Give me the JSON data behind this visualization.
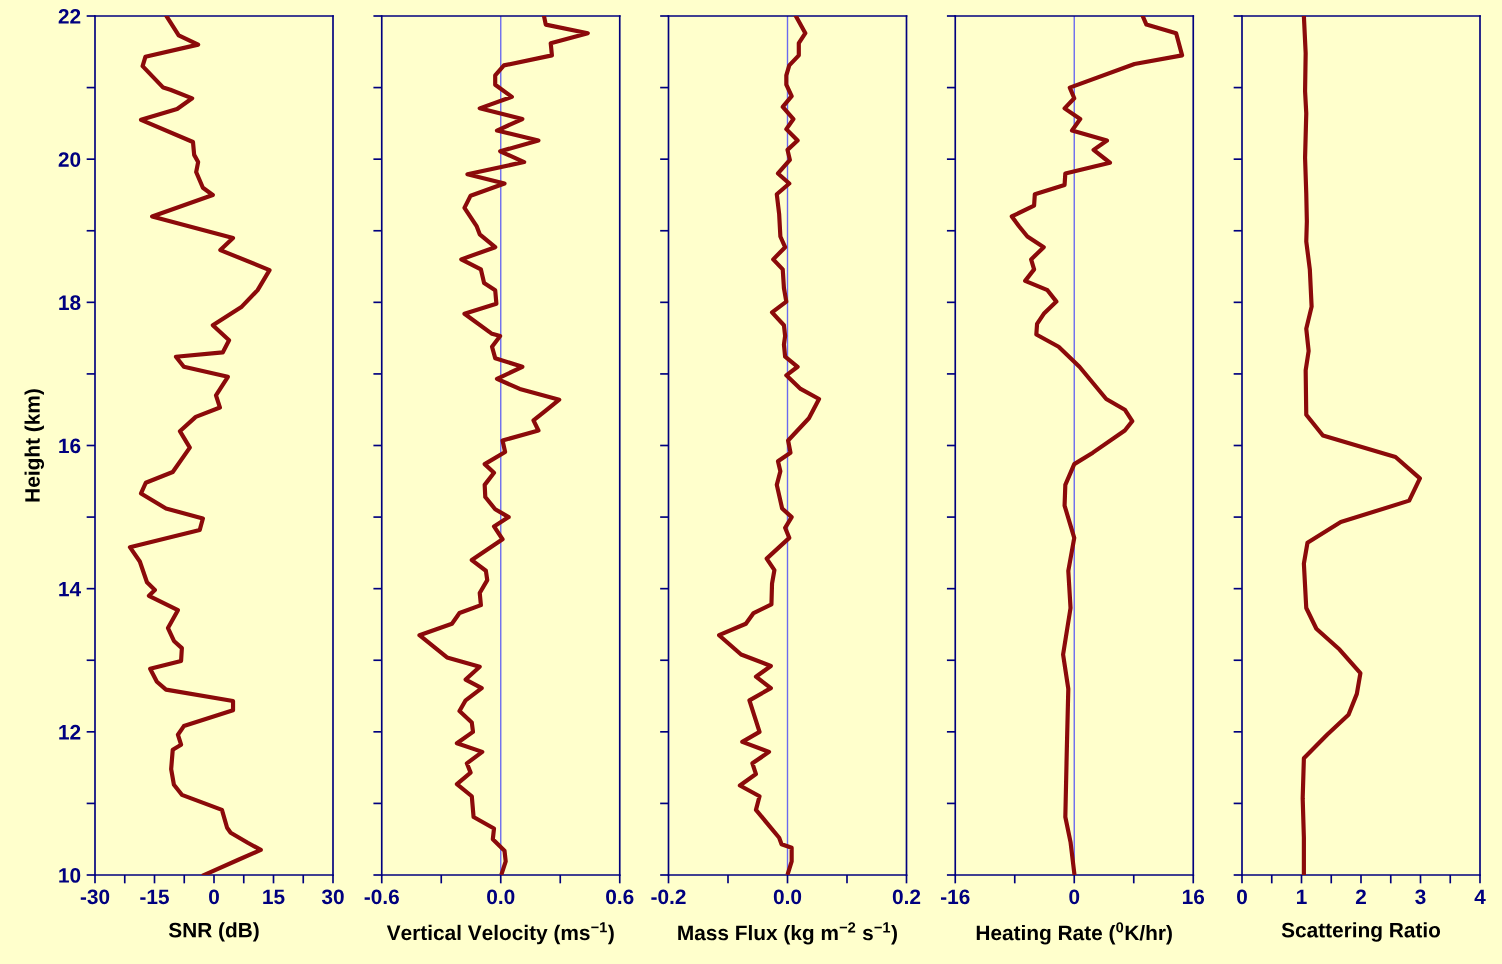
{
  "chart_data": [
    {
      "type": "line",
      "xlabel": "SNR (dB)",
      "ylabel": "Height (km)",
      "series": [
        {
          "color": "#8b0a0a",
          "x": [
            -12,
            -8.9,
            -4,
            -17.3,
            -18,
            -12.8,
            -11,
            -5.5,
            -9.3,
            -18.4,
            -5.3,
            -5,
            -4,
            -4.5,
            -2.8,
            -0.3,
            -15.6,
            4.8,
            1.6,
            14,
            11,
            7,
            -0.3,
            3.8,
            2.2,
            -9.6,
            -7.6,
            3.5,
            0.5,
            1.5,
            -4.6,
            -8.6,
            -6.1,
            -10.4,
            -17.2,
            -18.4,
            -12.1,
            -2.8,
            -3.6,
            -21.2,
            -18.7,
            -16.9,
            -14.9,
            -16.4,
            -9.1,
            -11.6,
            -10.1,
            -8.1,
            -8.3,
            -16.1,
            -14.4,
            -12.1,
            4.8,
            4.8,
            -7.6,
            -9.1,
            -8.3,
            -10.4,
            -10.8,
            -10.1,
            -8.1,
            2,
            3.3,
            4.2,
            8.5,
            11.8,
            6,
            -2.5
          ],
          "values": [
            22,
            21.73,
            21.6,
            21.43,
            21.3,
            21.0,
            20.97,
            20.85,
            20.7,
            20.55,
            20.24,
            20.06,
            19.96,
            19.82,
            19.6,
            19.5,
            19.2,
            18.9,
            18.73,
            18.45,
            18.17,
            17.94,
            17.68,
            17.47,
            17.3,
            17.24,
            17.1,
            16.96,
            16.7,
            16.53,
            16.4,
            16.2,
            15.97,
            15.63,
            15.48,
            15.33,
            15.12,
            14.98,
            14.82,
            14.58,
            14.38,
            14.09,
            13.98,
            13.9,
            13.7,
            13.45,
            13.27,
            13.17,
            12.99,
            12.88,
            12.7,
            12.59,
            12.43,
            12.3,
            12.08,
            11.96,
            11.82,
            11.75,
            11.48,
            11.26,
            11.12,
            10.91,
            10.66,
            10.59,
            10.45,
            10.35,
            10.21,
            10
          ]
        }
      ],
      "xlim": [
        -30,
        30
      ],
      "xticks": [
        -30,
        {
          "value": -22.5,
          "label": null
        },
        -15,
        {
          "value": -7.5,
          "label": null
        },
        0,
        {
          "value": 7.5,
          "label": null
        },
        15,
        {
          "value": 22.5,
          "label": null
        },
        30
      ],
      "ylim": [
        10,
        22
      ],
      "yticks": [
        10,
        {
          "value": 11,
          "label": null
        },
        12,
        {
          "value": 13,
          "label": null
        },
        14,
        {
          "value": 15,
          "label": null
        },
        16,
        {
          "value": 17,
          "label": null
        },
        18,
        {
          "value": 19,
          "label": null
        },
        20,
        {
          "value": 21,
          "label": null
        },
        22
      ]
    },
    {
      "type": "line",
      "xlabel": "Vertical Velocity (ms$^{−1}$)",
      "tick_labels": "x",
      "series": [
        {
          "color": "#8b0a0a",
          "x": [
            0.218,
            0.227,
            0.439,
            0.252,
            0.258,
            0.016,
            -0.028,
            -0.028,
            0.056,
            -0.106,
            0.109,
            -0.019,
            0.19,
            -0.003,
            0.118,
            -0.168,
            0.019,
            -0.152,
            -0.183,
            -0.121,
            -0.106,
            -0.028,
            -0.199,
            -0.1,
            -0.084,
            -0.028,
            -0.022,
            -0.183,
            -0.044,
            -0.003,
            -0.044,
            -0.028,
            0.109,
            -0.019,
            0.096,
            0.295,
            0.233,
            0.165,
            0.19,
            0.009,
            0.022,
            -0.081,
            -0.034,
            -0.081,
            -0.078,
            -0.028,
            0.04,
            -0.034,
            0.009,
            -0.146,
            -0.075,
            -0.068,
            -0.106,
            -0.1,
            -0.208,
            -0.246,
            -0.41,
            -0.271,
            -0.106,
            -0.177,
            -0.096,
            -0.177,
            -0.208,
            -0.146,
            -0.14,
            -0.221,
            -0.093,
            -0.171,
            -0.152,
            -0.221,
            -0.146,
            -0.137,
            -0.034,
            -0.04,
            0.019,
            0.025,
            0.006
          ],
          "values": [
            22,
            21.88,
            21.76,
            21.62,
            21.45,
            21.31,
            21.17,
            21.04,
            20.87,
            20.71,
            20.56,
            20.4,
            20.26,
            20.11,
            19.96,
            19.79,
            19.66,
            19.49,
            19.32,
            19.06,
            18.95,
            18.77,
            18.6,
            18.46,
            18.27,
            18.17,
            17.98,
            17.84,
            17.56,
            17.53,
            17.38,
            17.22,
            17.1,
            16.93,
            16.79,
            16.64,
            16.5,
            16.35,
            16.21,
            16.07,
            15.91,
            15.74,
            15.62,
            15.45,
            15.28,
            15.11,
            15.0,
            14.87,
            14.69,
            14.4,
            14.25,
            14.12,
            13.94,
            13.77,
            13.66,
            13.51,
            13.35,
            13.04,
            12.91,
            12.73,
            12.61,
            12.44,
            12.29,
            12.13,
            12.0,
            11.84,
            11.72,
            11.56,
            11.43,
            11.27,
            11.1,
            10.81,
            10.65,
            10.5,
            10.34,
            10.19,
            10.03
          ]
        }
      ],
      "xlim": [
        -0.6,
        0.6
      ],
      "xticks": [
        {
          "value": -0.6,
          "label": "-0.6"
        },
        {
          "value": -0.3,
          "label": null
        },
        {
          "value": 0,
          "label": "0.0"
        },
        {
          "value": 0.3,
          "label": null
        },
        {
          "value": 0.6,
          "label": "0.6"
        }
      ],
      "ylim": [
        10,
        22
      ],
      "yticks": [
        10,
        11,
        12,
        13,
        14,
        15,
        16,
        17,
        18,
        19,
        20,
        21,
        22
      ],
      "ref_lines": [
        {
          "axis": "x",
          "value": 0,
          "color": "#6a6af0"
        }
      ]
    },
    {
      "type": "line",
      "xlabel": "Mass Flux (kg m$^{−2}$ s$^{−1}$)",
      "tick_labels": "x",
      "series": [
        {
          "color": "#8b0a0a",
          "x": [
            0.014,
            0.03,
            0.019,
            0.019,
            0.003,
            -0.002,
            -0.002,
            0.007,
            -0.008,
            0.01,
            -0.002,
            0.017,
            0,
            0.004,
            -0.016,
            0.003,
            -0.018,
            -0.014,
            -0.012,
            -0.004,
            -0.024,
            -0.008,
            -0.006,
            -0.002,
            -0.026,
            -0.006,
            -0.004,
            -0.006,
            -0.004,
            0.017,
            -0.002,
            0.022,
            0.053,
            0.036,
            0.001,
            0.005,
            -0.016,
            -0.012,
            -0.018,
            -0.009,
            0.007,
            -0.004,
            0.003,
            -0.035,
            -0.022,
            -0.026,
            -0.027,
            -0.057,
            -0.07,
            -0.115,
            -0.078,
            -0.028,
            -0.053,
            -0.028,
            -0.064,
            -0.047,
            -0.076,
            -0.031,
            -0.059,
            -0.053,
            -0.08,
            -0.047,
            -0.053,
            -0.014,
            -0.01,
            0.007,
            0.007,
            0.001
          ],
          "values": [
            22,
            21.76,
            21.62,
            21.45,
            21.31,
            21.17,
            21.04,
            20.88,
            20.73,
            20.56,
            20.42,
            20.26,
            20.13,
            19.99,
            19.8,
            19.66,
            19.51,
            19.23,
            18.92,
            18.77,
            18.6,
            18.46,
            18.2,
            18.01,
            17.86,
            17.68,
            17.53,
            17.41,
            17.24,
            17.1,
            16.98,
            16.79,
            16.65,
            16.38,
            16.07,
            15.9,
            15.78,
            15.64,
            15.45,
            15.12,
            15.0,
            14.85,
            14.71,
            14.42,
            14.26,
            14.07,
            13.78,
            13.66,
            13.51,
            13.35,
            13.08,
            12.92,
            12.77,
            12.61,
            12.44,
            12.0,
            11.86,
            11.72,
            11.56,
            11.41,
            11.25,
            11.1,
            10.91,
            10.52,
            10.43,
            10.38,
            10.19,
            10.03
          ]
        }
      ],
      "xlim": [
        -0.2,
        0.2
      ],
      "xticks": [
        {
          "value": -0.2,
          "label": "-0.2"
        },
        {
          "value": -0.1,
          "label": null
        },
        {
          "value": 0,
          "label": "0.0"
        },
        {
          "value": 0.1,
          "label": null
        },
        {
          "value": 0.2,
          "label": "0.2"
        }
      ],
      "ylim": [
        10,
        22
      ],
      "yticks": [
        10,
        11,
        12,
        13,
        14,
        15,
        16,
        17,
        18,
        19,
        20,
        21,
        22
      ],
      "ref_lines": [
        {
          "axis": "x",
          "value": 0,
          "color": "#6a6af0"
        }
      ]
    },
    {
      "type": "line",
      "xlabel": "Heating Rate ($^{0}$K/hr)",
      "tick_labels": "x",
      "series": [
        {
          "color": "#8b0a0a",
          "x": [
            9.2,
            9.7,
            13.7,
            14.5,
            8.1,
            -0.6,
            0,
            -1.3,
            0.8,
            -0.3,
            4.4,
            2.6,
            4.8,
            -1.2,
            -1.3,
            -5.3,
            -5.4,
            -8.4,
            -7.4,
            -6.3,
            -4.1,
            -5.8,
            -5.4,
            -6.6,
            -3.6,
            -2.4,
            -4.1,
            -5.0,
            -5.1,
            -2.1,
            0.7,
            4.3,
            6.8,
            7.8,
            6.8,
            2.5,
            0,
            -1.2,
            -1.3,
            0,
            -0.8,
            -0.5,
            -1.5,
            -0.8,
            -1.0,
            -1.2,
            -0.5,
            0
          ],
          "values": [
            22,
            21.88,
            21.76,
            21.45,
            21.33,
            21.0,
            20.85,
            20.71,
            20.56,
            20.4,
            20.26,
            20.13,
            19.95,
            19.8,
            19.64,
            19.51,
            19.35,
            19.2,
            19.06,
            18.92,
            18.77,
            18.6,
            18.46,
            18.3,
            18.17,
            18.01,
            17.84,
            17.7,
            17.55,
            17.38,
            17.1,
            16.65,
            16.5,
            16.34,
            16.21,
            15.9,
            15.74,
            15.45,
            15.16,
            14.71,
            14.25,
            13.73,
            13.08,
            12.6,
            11.75,
            10.81,
            10.46,
            10.03
          ]
        }
      ],
      "xlim": [
        -16,
        16
      ],
      "xticks": [
        -16,
        {
          "value": -8,
          "label": null
        },
        0,
        {
          "value": 8,
          "label": null
        },
        16
      ],
      "ylim": [
        10,
        22
      ],
      "yticks": [
        10,
        11,
        12,
        13,
        14,
        15,
        16,
        17,
        18,
        19,
        20,
        21,
        22
      ],
      "ref_lines": [
        {
          "axis": "x",
          "value": 0,
          "color": "#6a6af0"
        }
      ]
    },
    {
      "type": "line",
      "xlabel": "Scattering Ratio",
      "tick_labels": "x",
      "series": [
        {
          "color": "#8b0a0a",
          "x": [
            1.04,
            1.07,
            1.06,
            1.08,
            1.06,
            1.08,
            1.09,
            1.08,
            1.14,
            1.17,
            1.08,
            1.12,
            1.07,
            1.08,
            1.36,
            2.58,
            2.99,
            2.81,
            1.66,
            1.1,
            1.04,
            1.08,
            1.25,
            1.64,
            1.99,
            1.93,
            1.79,
            1.43,
            1.04,
            1.02,
            1.04,
            1.04
          ],
          "values": [
            22,
            21.48,
            20.95,
            20.64,
            20.02,
            19.52,
            19.13,
            18.85,
            18.46,
            17.94,
            17.63,
            17.32,
            17.05,
            16.43,
            16.14,
            15.84,
            15.54,
            15.23,
            14.93,
            14.64,
            14.35,
            13.73,
            13.44,
            13.15,
            12.82,
            12.53,
            12.24,
            11.96,
            11.63,
            11.07,
            10.52,
            10
          ]
        }
      ],
      "xlim": [
        0,
        4
      ],
      "xticks": [
        0,
        {
          "value": 0.5,
          "label": null
        },
        1,
        {
          "value": 1.5,
          "label": null
        },
        2,
        {
          "value": 2.5,
          "label": null
        },
        3,
        {
          "value": 3.5,
          "label": null
        },
        4
      ],
      "ylim": [
        10,
        22
      ],
      "yticks": [
        10,
        11,
        12,
        13,
        14,
        15,
        16,
        17,
        18,
        19,
        20,
        21,
        22
      ]
    }
  ]
}
